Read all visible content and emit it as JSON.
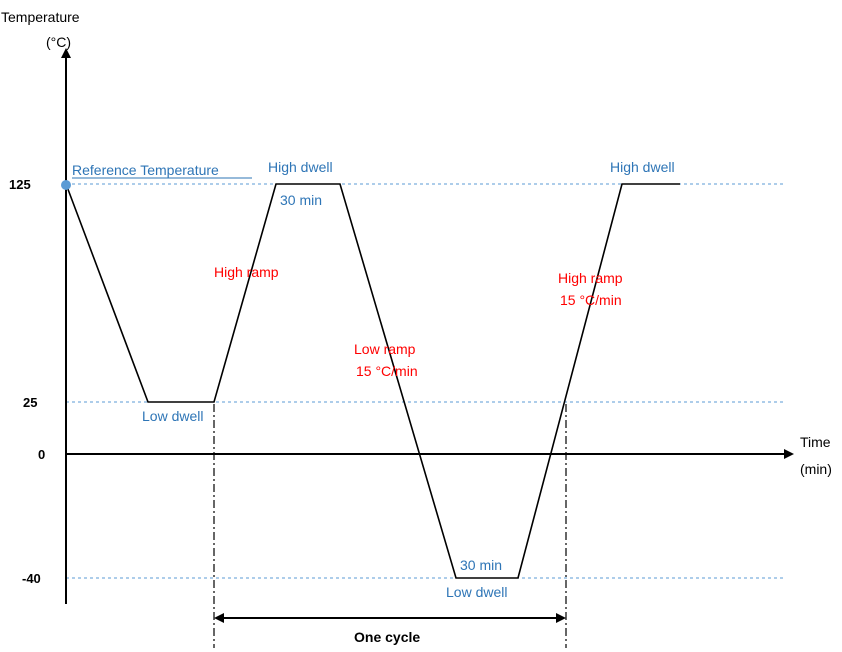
{
  "axes": {
    "y_label_line1": "Temperature",
    "y_label_line2": "(°C)",
    "x_label_line1": "Time",
    "x_label_line2": "(min)"
  },
  "ticks": [
    {
      "key": "t125",
      "label": "125",
      "value": 125
    },
    {
      "key": "t25",
      "label": "25",
      "value": 25
    },
    {
      "key": "t0",
      "label": "0",
      "value": 0
    },
    {
      "key": "tm40",
      "label": "-40",
      "value": -40
    }
  ],
  "labels": {
    "reference_temperature": "Reference Temperature",
    "high_dwell_1": "High dwell",
    "high_dwell_1_time": "30 min",
    "high_ramp_1": "High ramp",
    "low_dwell_1": "Low dwell",
    "low_ramp_line1": "Low ramp",
    "low_ramp_line2": "15 °C/min",
    "low_dwell_2_time": "30 min",
    "low_dwell_2": "Low dwell",
    "high_ramp_2_line1": "High ramp",
    "high_ramp_2_line2": "15 °C/min",
    "high_dwell_2": "High dwell",
    "one_cycle": "One cycle"
  },
  "colors": {
    "profile": "#000000",
    "guide": "#5b9bd5",
    "dwell_text": "#2e75b6",
    "ramp_text": "#ff0000",
    "marker": "#5b9bd5"
  }
}
